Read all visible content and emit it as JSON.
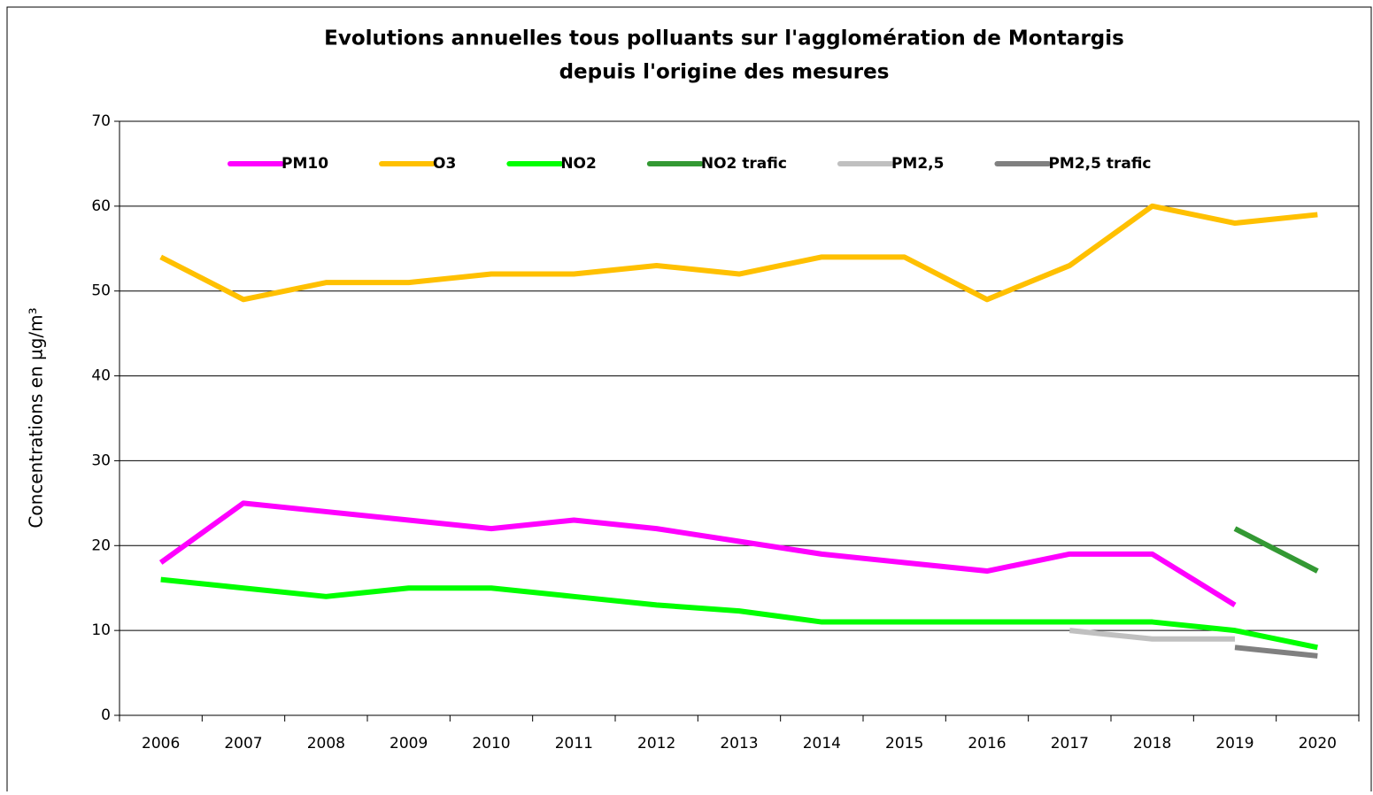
{
  "chart_data": {
    "type": "line",
    "title": "Evolutions annuelles tous polluants sur l'agglomération de Montargis",
    "subtitle": "depuis l'origine des mesures",
    "y_label": "Concentrations en µg/m³",
    "categories": [
      "2006",
      "2007",
      "2008",
      "2009",
      "2010",
      "2011",
      "2012",
      "2013",
      "2014",
      "2015",
      "2016",
      "2017",
      "2018",
      "2019",
      "2020"
    ],
    "series": [
      {
        "name": "PM10",
        "color": "#ff00ff",
        "values": [
          18,
          25,
          24,
          23,
          22,
          23,
          22,
          20.5,
          19,
          18,
          17,
          19,
          19,
          13,
          null
        ]
      },
      {
        "name": "O3",
        "color": "#ffc000",
        "values": [
          54,
          49,
          51,
          51,
          52,
          52,
          53,
          52,
          54,
          54,
          49,
          53,
          60,
          58,
          59
        ]
      },
      {
        "name": "NO2",
        "color": "#00ff00",
        "values": [
          16,
          15,
          14,
          15,
          15,
          14,
          13,
          12.3,
          11,
          11,
          11,
          11,
          11,
          10,
          8
        ]
      },
      {
        "name": "NO2 trafic",
        "color": "#339933",
        "values": [
          null,
          null,
          null,
          null,
          null,
          null,
          null,
          null,
          null,
          null,
          null,
          null,
          null,
          22,
          17
        ]
      },
      {
        "name": "PM2,5",
        "color": "#c0c0c0",
        "values": [
          null,
          null,
          null,
          null,
          null,
          null,
          null,
          null,
          null,
          null,
          null,
          10,
          9,
          9,
          null
        ]
      },
      {
        "name": "PM2,5 trafic",
        "color": "#808080",
        "values": [
          null,
          null,
          null,
          null,
          null,
          null,
          null,
          null,
          null,
          null,
          null,
          null,
          null,
          8,
          7
        ]
      }
    ],
    "ylim": [
      0,
      70
    ],
    "yticks": [
      0,
      10,
      20,
      30,
      40,
      50,
      60,
      70
    ],
    "grid": true,
    "legend": "top"
  }
}
